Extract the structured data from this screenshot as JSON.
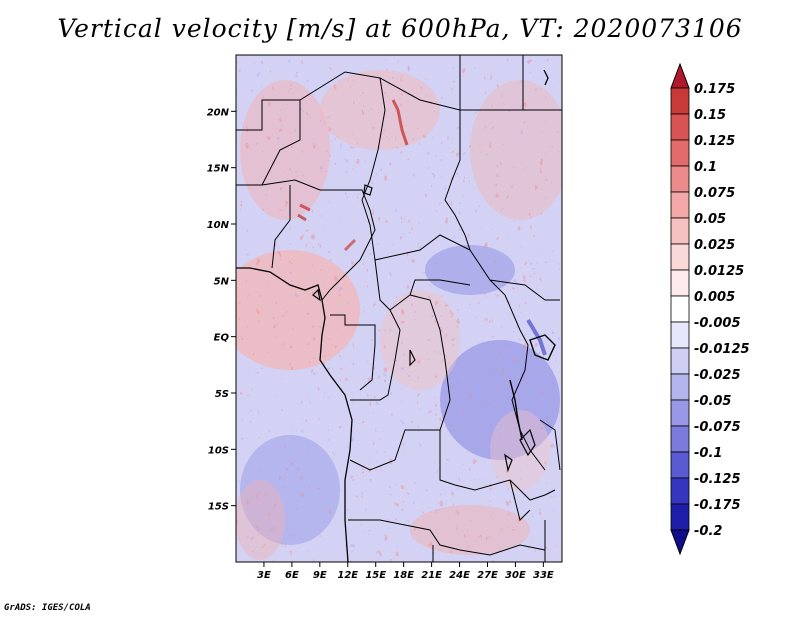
{
  "title": "Vertical velocity [m/s] at 600hPa, VT: 2020073106",
  "credit": "GrADS: IGES/COLA",
  "map": {
    "lon_range": [
      0,
      35
    ],
    "lat_range": [
      -20,
      25
    ],
    "lon_ticks": [
      "3E",
      "6E",
      "9E",
      "12E",
      "15E",
      "18E",
      "21E",
      "24E",
      "27E",
      "30E",
      "33E"
    ],
    "lon_tick_values": [
      3,
      6,
      9,
      12,
      15,
      18,
      21,
      24,
      27,
      30,
      33
    ],
    "lat_ticks": [
      "20N",
      "15N",
      "10N",
      "5N",
      "EQ",
      "5S",
      "10S",
      "15S"
    ],
    "lat_tick_values": [
      20,
      15,
      10,
      5,
      0,
      -5,
      -10,
      -15
    ]
  },
  "colorbar": {
    "labels": [
      "0.175",
      "0.15",
      "0.125",
      "0.1",
      "0.075",
      "0.05",
      "0.025",
      "0.0125",
      "0.005",
      "-0.005",
      "-0.0125",
      "-0.025",
      "-0.05",
      "-0.075",
      "-0.1",
      "-0.125",
      "-0.175",
      "-0.2"
    ],
    "colors": [
      "#b2182b",
      "#c83a3a",
      "#d85353",
      "#e36b6b",
      "#ec8b8b",
      "#f3a7a7",
      "#f8c1c1",
      "#fbd9d9",
      "#fdebeb",
      "#ffffff",
      "#e7e7fb",
      "#cfcff4",
      "#b5b5ee",
      "#9898e6",
      "#7b7bde",
      "#5a5ad2",
      "#3535c0",
      "#1e1eaa",
      "#0d0d8e"
    ]
  }
}
